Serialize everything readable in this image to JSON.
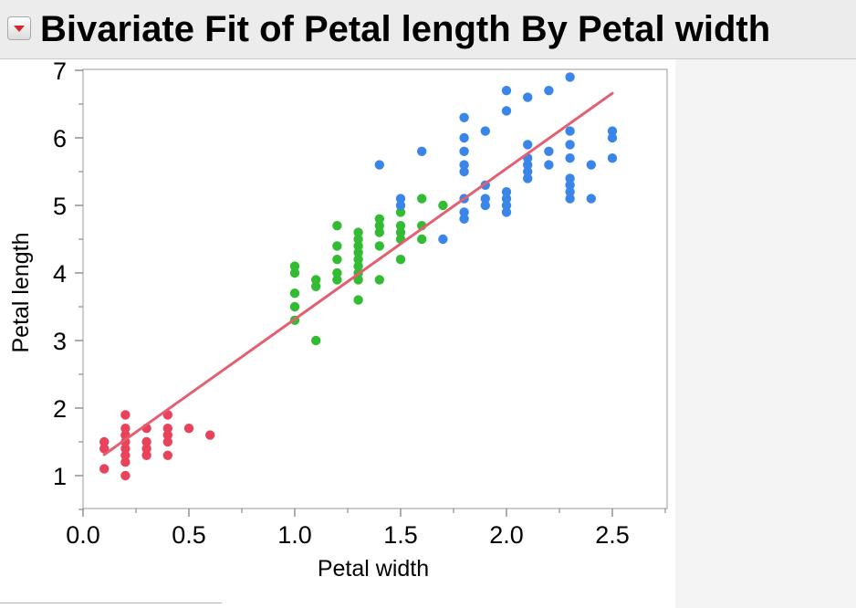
{
  "title_bar": {
    "title": "Bivariate Fit of Petal length By Petal width",
    "disclosure_icon": "red-triangle-menu-icon"
  },
  "colors": {
    "setosa_points": "#e8435b",
    "versicolor_points": "#33bb33",
    "virginica_points": "#3a85e8",
    "fit_line": "#e35f72",
    "header_background": "#ececec"
  },
  "chart_data": {
    "type": "scatter",
    "title": "",
    "xlabel": "Petal width",
    "ylabel": "Petal length",
    "xlim": [
      0.0,
      2.75
    ],
    "ylim": [
      0.5,
      7.0
    ],
    "x_ticks": [
      "0.0",
      "0.5",
      "1.0",
      "1.5",
      "2.0",
      "2.5"
    ],
    "y_ticks": [
      "1",
      "2",
      "3",
      "4",
      "5",
      "6",
      "7"
    ],
    "grid": false,
    "legend": "none",
    "series": [
      {
        "color": "#e8435b",
        "points": [
          [
            0.1,
            1.1
          ],
          [
            0.1,
            1.4
          ],
          [
            0.1,
            1.5
          ],
          [
            0.2,
            1.0
          ],
          [
            0.2,
            1.2
          ],
          [
            0.2,
            1.3
          ],
          [
            0.2,
            1.4
          ],
          [
            0.2,
            1.5
          ],
          [
            0.2,
            1.6
          ],
          [
            0.2,
            1.7
          ],
          [
            0.2,
            1.9
          ],
          [
            0.3,
            1.3
          ],
          [
            0.3,
            1.4
          ],
          [
            0.3,
            1.5
          ],
          [
            0.3,
            1.7
          ],
          [
            0.4,
            1.3
          ],
          [
            0.4,
            1.5
          ],
          [
            0.4,
            1.6
          ],
          [
            0.4,
            1.7
          ],
          [
            0.4,
            1.9
          ],
          [
            0.5,
            1.7
          ],
          [
            0.6,
            1.6
          ]
        ]
      },
      {
        "color": "#33bb33",
        "points": [
          [
            1.0,
            3.3
          ],
          [
            1.0,
            3.5
          ],
          [
            1.0,
            3.7
          ],
          [
            1.0,
            4.0
          ],
          [
            1.0,
            4.1
          ],
          [
            1.1,
            3.0
          ],
          [
            1.1,
            3.8
          ],
          [
            1.1,
            3.9
          ],
          [
            1.2,
            3.9
          ],
          [
            1.2,
            4.0
          ],
          [
            1.2,
            4.2
          ],
          [
            1.2,
            4.4
          ],
          [
            1.2,
            4.7
          ],
          [
            1.3,
            3.6
          ],
          [
            1.3,
            3.9
          ],
          [
            1.3,
            4.0
          ],
          [
            1.3,
            4.1
          ],
          [
            1.3,
            4.2
          ],
          [
            1.3,
            4.3
          ],
          [
            1.3,
            4.4
          ],
          [
            1.3,
            4.5
          ],
          [
            1.3,
            4.6
          ],
          [
            1.4,
            3.9
          ],
          [
            1.4,
            4.4
          ],
          [
            1.4,
            4.6
          ],
          [
            1.4,
            4.7
          ],
          [
            1.4,
            4.8
          ],
          [
            1.5,
            4.2
          ],
          [
            1.5,
            4.5
          ],
          [
            1.5,
            4.6
          ],
          [
            1.5,
            4.7
          ],
          [
            1.5,
            4.9
          ],
          [
            1.6,
            4.5
          ],
          [
            1.6,
            4.7
          ],
          [
            1.6,
            5.1
          ],
          [
            1.7,
            5.0
          ]
        ]
      },
      {
        "color": "#3a85e8",
        "points": [
          [
            1.4,
            5.6
          ],
          [
            1.5,
            5.0
          ],
          [
            1.5,
            5.1
          ],
          [
            1.6,
            5.8
          ],
          [
            1.7,
            4.5
          ],
          [
            1.8,
            4.8
          ],
          [
            1.8,
            4.9
          ],
          [
            1.8,
            5.1
          ],
          [
            1.8,
            5.5
          ],
          [
            1.8,
            5.6
          ],
          [
            1.8,
            5.8
          ],
          [
            1.8,
            6.0
          ],
          [
            1.8,
            6.3
          ],
          [
            1.9,
            5.0
          ],
          [
            1.9,
            5.1
          ],
          [
            1.9,
            5.3
          ],
          [
            1.9,
            6.1
          ],
          [
            2.0,
            4.9
          ],
          [
            2.0,
            5.0
          ],
          [
            2.0,
            5.1
          ],
          [
            2.0,
            5.2
          ],
          [
            2.0,
            6.4
          ],
          [
            2.0,
            6.7
          ],
          [
            2.1,
            5.4
          ],
          [
            2.1,
            5.5
          ],
          [
            2.1,
            5.6
          ],
          [
            2.1,
            5.7
          ],
          [
            2.1,
            5.9
          ],
          [
            2.1,
            6.6
          ],
          [
            2.2,
            5.6
          ],
          [
            2.2,
            5.8
          ],
          [
            2.2,
            6.7
          ],
          [
            2.3,
            5.1
          ],
          [
            2.3,
            5.2
          ],
          [
            2.3,
            5.3
          ],
          [
            2.3,
            5.4
          ],
          [
            2.3,
            5.7
          ],
          [
            2.3,
            5.9
          ],
          [
            2.3,
            6.1
          ],
          [
            2.3,
            6.9
          ],
          [
            2.4,
            5.1
          ],
          [
            2.4,
            5.6
          ],
          [
            2.5,
            5.7
          ],
          [
            2.5,
            6.0
          ],
          [
            2.5,
            6.1
          ]
        ]
      }
    ],
    "fit_line": {
      "type": "linear",
      "x": [
        0.1,
        2.5
      ],
      "y": [
        1.31,
        6.66
      ]
    }
  }
}
